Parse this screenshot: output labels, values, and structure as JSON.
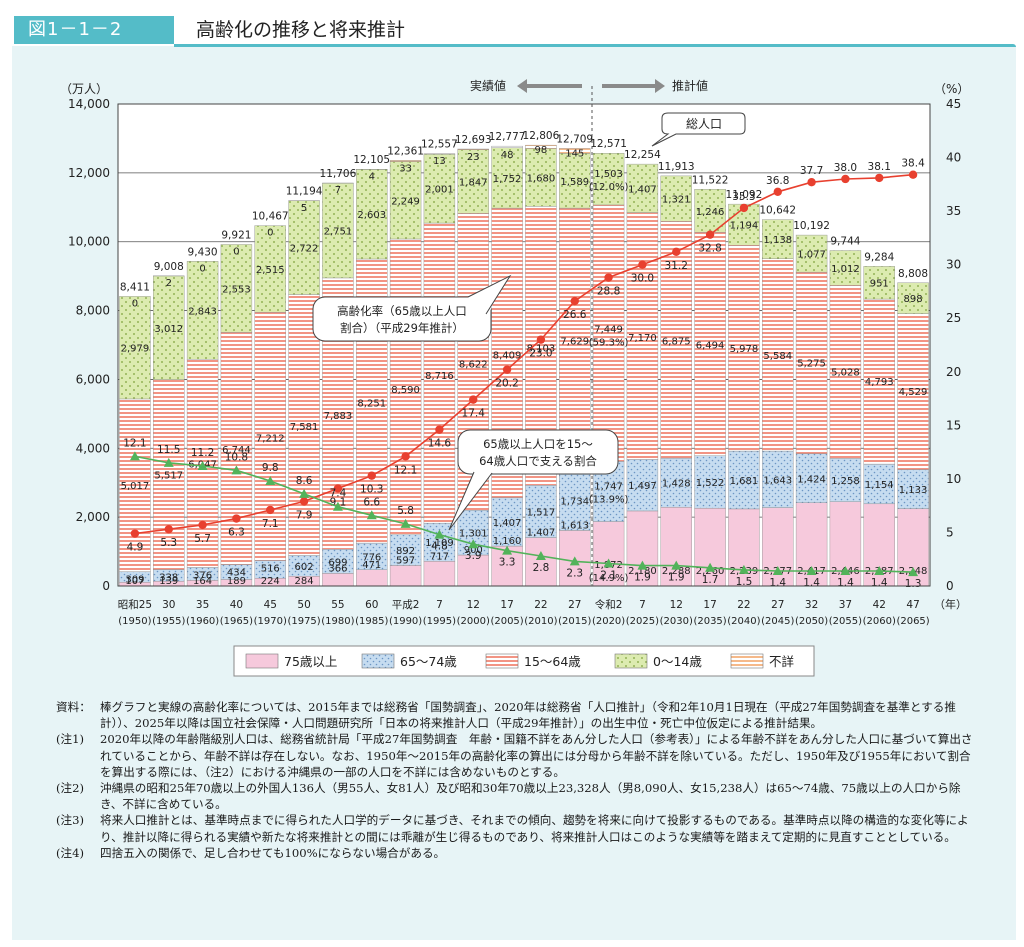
{
  "figure": {
    "tag": "図1－1－2",
    "title": "高齢化の推移と将来推計"
  },
  "chart_data": {
    "type": "bar",
    "left_axis": {
      "unit_label": "（万人）",
      "range": [
        0,
        14000
      ],
      "ticks": [
        "0",
        "2,000",
        "4,000",
        "6,000",
        "8,000",
        "10,000",
        "12,000",
        "14,000"
      ]
    },
    "right_axis": {
      "unit_label": "（%）",
      "range": [
        0,
        45
      ],
      "ticks": [
        "0",
        "5",
        "10",
        "15",
        "20",
        "25",
        "30",
        "35",
        "40",
        "45"
      ]
    },
    "x_unit_label": "（年）",
    "categories": [
      {
        "era": "昭和25",
        "year": "(1950)"
      },
      {
        "era": "30",
        "year": "(1955)"
      },
      {
        "era": "35",
        "year": "(1960)"
      },
      {
        "era": "40",
        "year": "(1965)"
      },
      {
        "era": "45",
        "year": "(1970)"
      },
      {
        "era": "50",
        "year": "(1975)"
      },
      {
        "era": "55",
        "year": "(1980)"
      },
      {
        "era": "60",
        "year": "(1985)"
      },
      {
        "era": "平成2",
        "year": "(1990)"
      },
      {
        "era": "7",
        "year": "(1995)"
      },
      {
        "era": "12",
        "year": "(2000)"
      },
      {
        "era": "17",
        "year": "(2005)"
      },
      {
        "era": "22",
        "year": "(2010)"
      },
      {
        "era": "27",
        "year": "(2015)"
      },
      {
        "era": "令和2",
        "year": "(2020)"
      },
      {
        "era": "7",
        "year": "(2025)"
      },
      {
        "era": "12",
        "year": "(2030)"
      },
      {
        "era": "17",
        "year": "(2035)"
      },
      {
        "era": "22",
        "year": "(2040)"
      },
      {
        "era": "27",
        "year": "(2045)"
      },
      {
        "era": "32",
        "year": "(2050)"
      },
      {
        "era": "37",
        "year": "(2055)"
      },
      {
        "era": "42",
        "year": "(2060)"
      },
      {
        "era": "47",
        "year": "(2065)"
      }
    ],
    "series": [
      {
        "name": "75歳以上",
        "color": "#f2bfd6",
        "values": [
          107,
          139,
          164,
          189,
          224,
          284,
          366,
          471,
          597,
          717,
          900,
          1160,
          1407,
          1613,
          1872,
          2180,
          2288,
          2260,
          2239,
          2277,
          2417,
          2446,
          2387,
          2248
        ],
        "labels": [
          "107",
          "139",
          "164",
          "189",
          "224",
          "284",
          "366",
          "471",
          "597",
          "717",
          "900",
          "1,160",
          "1,407",
          "1,613",
          "1,872\n(14.9%)",
          "2,180",
          "2,288",
          "2,260",
          "2,239",
          "2,277",
          "2,417",
          "2,446",
          "2,387",
          "2,248"
        ]
      },
      {
        "name": "65～74歳",
        "color": "#bdd8ef",
        "values": [
          309,
          338,
          376,
          434,
          516,
          602,
          699,
          776,
          892,
          1109,
          1301,
          1407,
          1517,
          1734,
          1747,
          1497,
          1428,
          1522,
          1681,
          1643,
          1424,
          1258,
          1154,
          1133
        ],
        "labels": [
          "309",
          "338",
          "376",
          "434",
          "516",
          "602",
          "699",
          "776",
          "892",
          "1,109",
          "1,301",
          "1,407",
          "1,517",
          "1,734",
          "1,747\n(13.9%)",
          "1,497",
          "1,428",
          "1,522",
          "1,681",
          "1,643",
          "1,424",
          "1,258",
          "1,154",
          "1,133"
        ]
      },
      {
        "name": "15～64歳",
        "color": "#f29a86",
        "values": [
          5017,
          5517,
          6047,
          6744,
          7212,
          7581,
          7883,
          8251,
          8590,
          8716,
          8622,
          8409,
          8103,
          7629,
          7449,
          7170,
          6875,
          6494,
          5978,
          5584,
          5275,
          5028,
          4793,
          4529
        ],
        "labels": [
          "5,017",
          "5,517",
          "6,047",
          "6,744",
          "7,212",
          "7,581",
          "7,883",
          "8,251",
          "8,590",
          "8,716",
          "8,622",
          "8,409",
          "8,103",
          "7,629",
          "7,449\n(59.3%)",
          "7,170",
          "6,875",
          "6,494",
          "5,978",
          "5,584",
          "5,275",
          "5,028",
          "4,793",
          "4,529"
        ]
      },
      {
        "name": "0～14歳",
        "color": "#d6e8a6",
        "values": [
          2979,
          3012,
          2843,
          2553,
          2515,
          2722,
          2751,
          2603,
          2249,
          2001,
          1847,
          1752,
          1680,
          1589,
          1503,
          1407,
          1321,
          1246,
          1194,
          1138,
          1077,
          1012,
          951,
          898
        ],
        "labels": [
          "2,979",
          "3,012",
          "2,843",
          "2,553",
          "2,515",
          "2,722",
          "2,751",
          "2,603",
          "2,249",
          "2,001",
          "1,847",
          "1,752",
          "1,680",
          "1,589",
          "1,503\n(12.0%)",
          "1,407",
          "1,321",
          "1,246",
          "1,194",
          "1,138",
          "1,077",
          "1,012",
          "951",
          "898"
        ]
      },
      {
        "name": "不詳",
        "color": "#f9d9b8",
        "values": [
          0,
          2,
          0,
          0,
          0,
          5,
          7,
          4,
          33,
          13,
          23,
          48,
          98,
          145,
          0,
          0,
          0,
          0,
          0,
          0,
          0,
          0,
          0,
          0
        ],
        "labels": [
          "0",
          "2",
          "0",
          "0",
          "0",
          "5",
          "7",
          "4",
          "33",
          "13",
          "23",
          "48",
          "98",
          "145",
          "",
          "",
          "",
          "",
          "",
          "",
          "",
          "",
          "",
          ""
        ]
      }
    ],
    "totals": [
      "8,411",
      "9,008",
      "9,430",
      "9,921",
      "10,467",
      "11,194",
      "11,706",
      "12,105",
      "12,361",
      "12,557",
      "12,693",
      "12,777",
      "12,806",
      "12,709",
      "12,571",
      "12,254",
      "11,913",
      "11,522",
      "11,092",
      "10,642",
      "10,192",
      "9,744",
      "9,284",
      "8,808"
    ],
    "aging_rate": {
      "name": "高齢化率",
      "color": "#e8402f",
      "values": [
        4.9,
        5.3,
        5.7,
        6.3,
        7.1,
        7.9,
        9.1,
        10.3,
        12.1,
        14.6,
        17.4,
        20.2,
        23.0,
        26.6,
        28.8,
        30.0,
        31.2,
        32.8,
        35.3,
        36.8,
        37.7,
        38.0,
        38.1,
        38.4
      ],
      "labels": [
        "4.9",
        "5.3",
        "5.7",
        "6.3",
        "7.1",
        "7.9",
        "9.1",
        "10.3",
        "12.1",
        "14.6",
        "17.4",
        "20.2",
        "23.0",
        "26.6",
        "28.8",
        "30.0",
        "31.2",
        "32.8",
        "35.3",
        "36.8",
        "37.7",
        "38.0",
        "38.1",
        "38.4"
      ]
    },
    "support_ratio": {
      "name": "65歳以上人口を15～64歳人口で支える割合",
      "color": "#52b35a",
      "values": [
        12.1,
        11.5,
        11.2,
        10.8,
        9.8,
        8.6,
        7.4,
        6.6,
        5.8,
        4.8,
        3.9,
        3.3,
        2.8,
        2.3,
        2.1,
        1.9,
        1.9,
        1.7,
        1.5,
        1.4,
        1.4,
        1.4,
        1.4,
        1.3
      ],
      "labels": [
        "12.1",
        "11.5",
        "11.2",
        "10.8",
        "9.8",
        "8.6",
        "7.4",
        "6.6",
        "5.8",
        "4.8",
        "3.9",
        "3.3",
        "2.8",
        "2.3",
        "2.1",
        "1.9",
        "1.9",
        "1.7",
        "1.5",
        "1.4",
        "1.4",
        "1.4",
        "1.4",
        "1.3"
      ]
    },
    "annotations": {
      "actual": "実績値",
      "projection": "推計値",
      "total_population": "総人口",
      "aging_rate_line1": "高齢化率（65歳以上人口",
      "aging_rate_line2": "割合）（平成29年推計）",
      "support_line1": "65歳以上人口を15～",
      "support_line2": "64歳人口で支える割合"
    },
    "legend": [
      "75歳以上",
      "65～74歳",
      "15～64歳",
      "0～14歳",
      "不詳"
    ]
  },
  "notes": [
    {
      "label": "資料：",
      "text": "棒グラフと実線の高齢化率については、2015年までは総務省「国勢調査」、2020年は総務省「人口推計」（令和2年10月1日現在（平成27年国勢調査を基準とする推計））、2025年以降は国立社会保障・人口問題研究所「日本の将来推計人口（平成29年推計）」の出生中位・死亡中位仮定による推計結果。"
    },
    {
      "label": "(注1)",
      "text": "2020年以降の年齢階級別人口は、総務省統計局「平成27年国勢調査　年齢・国籍不詳をあん分した人口（参考表）」による年齢不詳をあん分した人口に基づいて算出されていることから、年齢不詳は存在しない。なお、1950年～2015年の高齢化率の算出には分母から年齢不詳を除いている。ただし、1950年及び1955年において割合を算出する際には、（注2）における沖縄県の一部の人口を不詳には含めないものとする。"
    },
    {
      "label": "(注2)",
      "text": "沖縄県の昭和25年70歳以上の外国人136人（男55人、女81人）及び昭和30年70歳以上23,328人（男8,090人、女15,238人）は65～74歳、75歳以上の人口から除き、不詳に含めている。"
    },
    {
      "label": "(注3)",
      "text": "将来人口推計とは、基準時点までに得られた人口学的データに基づき、それまでの傾向、趨勢を将来に向けて投影するものである。基準時点以降の構造的な変化等により、推計以降に得られる実績や新たな将来推計との間には乖離が生じ得るものであり、将来推計人口はこのような実績等を踏まえて定期的に見直すこととしている。"
    },
    {
      "label": "(注4)",
      "text": "四捨五入の関係で、足し合わせても100%にならない場合がある。"
    }
  ]
}
